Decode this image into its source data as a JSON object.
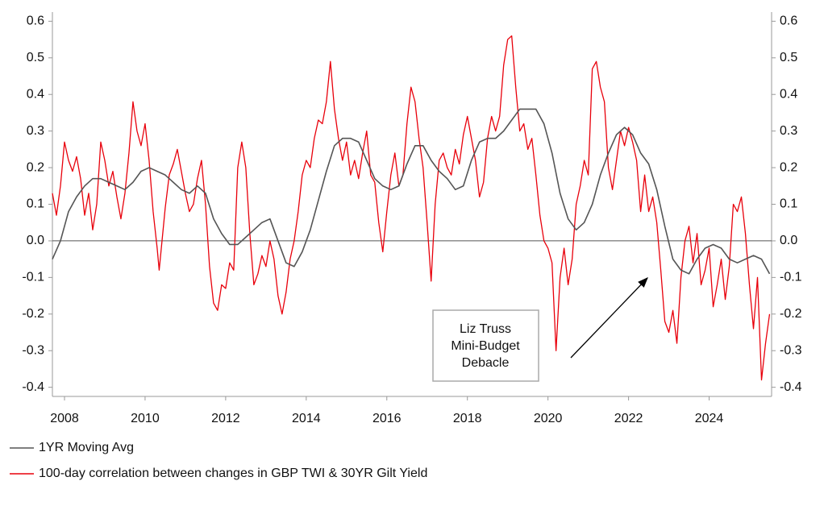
{
  "chart_data": {
    "type": "line",
    "xlim": [
      2007.7,
      2025.55
    ],
    "ylim": [
      -0.425,
      0.625
    ],
    "y2lim": [
      -0.425,
      0.625
    ],
    "xticks": [
      2008,
      2010,
      2012,
      2014,
      2016,
      2018,
      2020,
      2022,
      2024
    ],
    "yticks": [
      0.6,
      0.5,
      0.4,
      0.3,
      0.2,
      0.1,
      {
        "value": 0,
        "label": "0.0"
      },
      -0.1,
      -0.2,
      -0.3,
      -0.4
    ],
    "y2ticks": [
      0.6,
      0.5,
      0.4,
      0.3,
      0.2,
      0.1,
      {
        "value": 0,
        "label": "0.0"
      },
      -0.1,
      -0.2,
      -0.3,
      -0.4
    ],
    "zero_line": true,
    "series": [
      {
        "name": "1YR Moving Avg",
        "color": "#555555",
        "x": [
          2007.7,
          2007.9,
          2008.1,
          2008.3,
          2008.5,
          2008.7,
          2008.9,
          2009.1,
          2009.3,
          2009.5,
          2009.7,
          2009.9,
          2010.1,
          2010.3,
          2010.5,
          2010.7,
          2010.9,
          2011.1,
          2011.3,
          2011.5,
          2011.7,
          2011.9,
          2012.1,
          2012.3,
          2012.5,
          2012.7,
          2012.9,
          2013.1,
          2013.3,
          2013.5,
          2013.7,
          2013.9,
          2014.1,
          2014.3,
          2014.5,
          2014.7,
          2014.9,
          2015.1,
          2015.3,
          2015.5,
          2015.7,
          2015.9,
          2016.1,
          2016.3,
          2016.5,
          2016.7,
          2016.9,
          2017.1,
          2017.3,
          2017.5,
          2017.7,
          2017.9,
          2018.1,
          2018.3,
          2018.5,
          2018.7,
          2018.9,
          2019.1,
          2019.3,
          2019.5,
          2019.7,
          2019.9,
          2020.1,
          2020.3,
          2020.5,
          2020.7,
          2020.9,
          2021.1,
          2021.3,
          2021.5,
          2021.7,
          2021.9,
          2022.1,
          2022.3,
          2022.5,
          2022.7,
          2022.9,
          2023.1,
          2023.3,
          2023.5,
          2023.7,
          2023.9,
          2024.1,
          2024.3,
          2024.5,
          2024.7,
          2024.9,
          2025.1,
          2025.3,
          2025.5
        ],
        "values": [
          -0.05,
          0.0,
          0.08,
          0.12,
          0.15,
          0.17,
          0.17,
          0.16,
          0.15,
          0.14,
          0.16,
          0.19,
          0.2,
          0.19,
          0.18,
          0.16,
          0.14,
          0.13,
          0.15,
          0.13,
          0.06,
          0.02,
          -0.01,
          -0.01,
          0.01,
          0.03,
          0.05,
          0.06,
          0.0,
          -0.06,
          -0.07,
          -0.03,
          0.03,
          0.11,
          0.19,
          0.26,
          0.28,
          0.28,
          0.27,
          0.22,
          0.17,
          0.15,
          0.14,
          0.15,
          0.21,
          0.26,
          0.26,
          0.22,
          0.19,
          0.17,
          0.14,
          0.15,
          0.22,
          0.27,
          0.28,
          0.28,
          0.3,
          0.33,
          0.36,
          0.36,
          0.36,
          0.32,
          0.24,
          0.13,
          0.06,
          0.03,
          0.05,
          0.1,
          0.18,
          0.24,
          0.29,
          0.31,
          0.29,
          0.24,
          0.21,
          0.14,
          0.04,
          -0.05,
          -0.08,
          -0.09,
          -0.05,
          -0.02,
          -0.01,
          -0.02,
          -0.05,
          -0.06,
          -0.05,
          -0.04,
          -0.05,
          -0.09
        ]
      },
      {
        "name": "100-day correlation between changes in GBP TWI & 30YR Gilt Yield",
        "color": "#e8000b",
        "x": [
          2007.7,
          2007.8,
          2007.9,
          2008.0,
          2008.1,
          2008.2,
          2008.3,
          2008.4,
          2008.5,
          2008.6,
          2008.7,
          2008.8,
          2008.9,
          2009.0,
          2009.1,
          2009.2,
          2009.3,
          2009.4,
          2009.5,
          2009.6,
          2009.7,
          2009.8,
          2009.9,
          2010.0,
          2010.1,
          2010.2,
          2010.3,
          2010.35,
          2010.5,
          2010.6,
          2010.7,
          2010.8,
          2010.9,
          2011.0,
          2011.1,
          2011.2,
          2011.3,
          2011.4,
          2011.5,
          2011.6,
          2011.7,
          2011.8,
          2011.9,
          2012.0,
          2012.1,
          2012.2,
          2012.3,
          2012.4,
          2012.5,
          2012.6,
          2012.7,
          2012.8,
          2012.9,
          2013.0,
          2013.1,
          2013.2,
          2013.3,
          2013.4,
          2013.5,
          2013.6,
          2013.7,
          2013.8,
          2013.9,
          2014.0,
          2014.1,
          2014.2,
          2014.3,
          2014.4,
          2014.5,
          2014.6,
          2014.7,
          2014.8,
          2014.9,
          2015.0,
          2015.1,
          2015.2,
          2015.3,
          2015.4,
          2015.5,
          2015.6,
          2015.7,
          2015.8,
          2015.9,
          2016.0,
          2016.1,
          2016.2,
          2016.3,
          2016.4,
          2016.5,
          2016.6,
          2016.7,
          2016.8,
          2016.9,
          2017.0,
          2017.1,
          2017.2,
          2017.3,
          2017.4,
          2017.5,
          2017.6,
          2017.7,
          2017.8,
          2017.9,
          2018.0,
          2018.1,
          2018.2,
          2018.3,
          2018.4,
          2018.5,
          2018.6,
          2018.7,
          2018.8,
          2018.9,
          2019.0,
          2019.1,
          2019.2,
          2019.3,
          2019.4,
          2019.5,
          2019.6,
          2019.7,
          2019.8,
          2019.9,
          2020.0,
          2020.1,
          2020.2,
          2020.3,
          2020.4,
          2020.5,
          2020.6,
          2020.7,
          2020.8,
          2020.9,
          2021.0,
          2021.1,
          2021.2,
          2021.3,
          2021.4,
          2021.5,
          2021.6,
          2021.7,
          2021.8,
          2021.9,
          2022.0,
          2022.1,
          2022.2,
          2022.3,
          2022.4,
          2022.5,
          2022.6,
          2022.7,
          2022.8,
          2022.9,
          2023.0,
          2023.1,
          2023.2,
          2023.3,
          2023.4,
          2023.5,
          2023.6,
          2023.7,
          2023.8,
          2023.9,
          2024.0,
          2024.1,
          2024.2,
          2024.3,
          2024.4,
          2024.5,
          2024.6,
          2024.7,
          2024.8,
          2024.9,
          2025.0,
          2025.1,
          2025.2,
          2025.3,
          2025.4,
          2025.5
        ],
        "values": [
          0.13,
          0.07,
          0.15,
          0.27,
          0.22,
          0.19,
          0.23,
          0.17,
          0.07,
          0.13,
          0.03,
          0.1,
          0.27,
          0.22,
          0.15,
          0.19,
          0.12,
          0.06,
          0.13,
          0.24,
          0.38,
          0.3,
          0.26,
          0.32,
          0.22,
          0.08,
          -0.02,
          -0.08,
          0.09,
          0.18,
          0.21,
          0.25,
          0.19,
          0.13,
          0.08,
          0.1,
          0.17,
          0.22,
          0.1,
          -0.07,
          -0.17,
          -0.19,
          -0.12,
          -0.13,
          -0.06,
          -0.08,
          0.2,
          0.27,
          0.2,
          0.02,
          -0.12,
          -0.09,
          -0.04,
          -0.07,
          0.0,
          -0.05,
          -0.15,
          -0.2,
          -0.14,
          -0.05,
          0.0,
          0.08,
          0.18,
          0.22,
          0.2,
          0.28,
          0.33,
          0.32,
          0.38,
          0.49,
          0.36,
          0.28,
          0.22,
          0.27,
          0.18,
          0.22,
          0.17,
          0.24,
          0.3,
          0.18,
          0.16,
          0.05,
          -0.03,
          0.08,
          0.18,
          0.24,
          0.15,
          0.18,
          0.32,
          0.42,
          0.38,
          0.28,
          0.2,
          0.05,
          -0.11,
          0.1,
          0.22,
          0.24,
          0.2,
          0.18,
          0.25,
          0.21,
          0.29,
          0.34,
          0.28,
          0.22,
          0.12,
          0.16,
          0.28,
          0.34,
          0.3,
          0.34,
          0.48,
          0.55,
          0.56,
          0.42,
          0.3,
          0.32,
          0.25,
          0.28,
          0.18,
          0.07,
          0.0,
          -0.02,
          -0.06,
          -0.3,
          -0.1,
          -0.02,
          -0.12,
          -0.05,
          0.1,
          0.15,
          0.22,
          0.18,
          0.47,
          0.49,
          0.42,
          0.38,
          0.2,
          0.14,
          0.22,
          0.3,
          0.26,
          0.31,
          0.27,
          0.22,
          0.08,
          0.18,
          0.08,
          0.12,
          0.05,
          -0.08,
          -0.22,
          -0.25,
          -0.19,
          -0.28,
          -0.1,
          0.0,
          0.04,
          -0.06,
          0.02,
          -0.12,
          -0.08,
          -0.02,
          -0.18,
          -0.12,
          -0.05,
          -0.16,
          -0.07,
          0.1,
          0.08,
          0.12,
          0.02,
          -0.12,
          -0.24,
          -0.1,
          -0.38,
          -0.28,
          -0.2
        ]
      }
    ],
    "annotation": {
      "lines": [
        "Liz Truss",
        "Mini-Budget",
        "Debacle"
      ]
    }
  }
}
